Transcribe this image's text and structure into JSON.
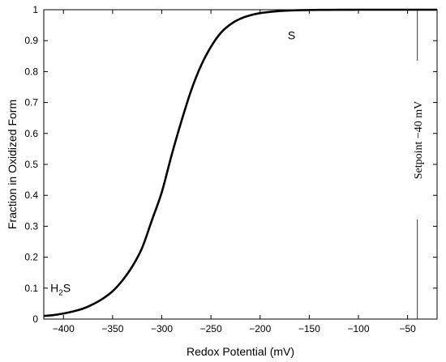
{
  "chart_data": {
    "type": "line",
    "title": "",
    "xlabel": "Redox Potential (mV)",
    "ylabel": "Fraction in Oxidized Form",
    "xlim": [
      -420,
      -20
    ],
    "ylim": [
      0,
      1
    ],
    "xticks": [
      -400,
      -350,
      -300,
      -250,
      -200,
      -150,
      -100,
      -50
    ],
    "xtick_labels": [
      "−400",
      "−350",
      "−300",
      "−250",
      "−200",
      "−150",
      "−100",
      "−50"
    ],
    "yticks": [
      0,
      0.1,
      0.2,
      0.3,
      0.4,
      0.5,
      0.6,
      0.7,
      0.8,
      0.9,
      1
    ],
    "ytick_labels": [
      "0",
      "0.1",
      "0.2",
      "0.3",
      "0.4",
      "0.5",
      "0.6",
      "0.7",
      "0.8",
      "0.9",
      "1"
    ],
    "grid": false,
    "series": [
      {
        "x": [
          -420,
          -410,
          -400,
          -390,
          -380,
          -370,
          -360,
          -350,
          -340,
          -330,
          -320,
          -310,
          -300,
          -290,
          -280,
          -270,
          -260,
          -250,
          -240,
          -230,
          -220,
          -210,
          -200,
          -190,
          -180,
          -170,
          -160,
          -150,
          -140,
          -130,
          -120,
          -110,
          -100,
          -90,
          -80,
          -70,
          -60,
          -50,
          -40,
          -30,
          -20
        ],
        "y": [
          0.01,
          0.013,
          0.018,
          0.025,
          0.034,
          0.048,
          0.066,
          0.09,
          0.125,
          0.17,
          0.23,
          0.32,
          0.41,
          0.53,
          0.64,
          0.74,
          0.82,
          0.88,
          0.925,
          0.953,
          0.971,
          0.982,
          0.989,
          0.993,
          0.996,
          0.9975,
          0.9985,
          0.999,
          0.9994,
          0.9996,
          0.9998,
          0.9999,
          1,
          1,
          1,
          1,
          1,
          1,
          1,
          1,
          1
        ],
        "color": "#000000"
      }
    ],
    "annotations": [
      {
        "name": "s-label",
        "text": "S",
        "x": -168,
        "y": 0.905
      },
      {
        "name": "h2s-label",
        "base": "H",
        "sub": "2",
        "tail": "S",
        "x": -403,
        "y": 0.088
      }
    ],
    "setpoint": {
      "x": -40,
      "text": "Setpoint  −40 mV",
      "text_y": 0.5
    }
  }
}
